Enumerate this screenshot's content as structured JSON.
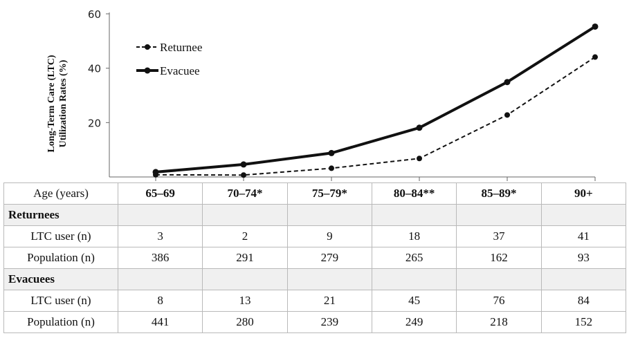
{
  "chart_data": {
    "type": "line",
    "ylabel_lines": [
      "Long-Term Care (LTC)",
      "Utilization Rates (%)"
    ],
    "yticks": [
      "20",
      "40",
      "60"
    ],
    "ylim": [
      0,
      60
    ],
    "categories": [
      "65–69",
      "70–74*",
      "75–79*",
      "80–84**",
      "85–89*",
      "90+"
    ],
    "series": [
      {
        "name": "Returnee",
        "style": "dashed",
        "values": [
          0.8,
          0.7,
          3.2,
          6.8,
          22.8,
          44.1
        ]
      },
      {
        "name": "Evacuee",
        "style": "solid",
        "values": [
          1.8,
          4.6,
          8.8,
          18.1,
          34.9,
          55.3
        ]
      }
    ],
    "legend_position": "top-left",
    "grid": false
  },
  "table": {
    "header_label": "Age (years)",
    "groups": [
      {
        "name": "Returnees",
        "rows": [
          {
            "label": "LTC user (n)",
            "values": [
              "3",
              "2",
              "9",
              "18",
              "37",
              "41"
            ]
          },
          {
            "label": "Population (n)",
            "values": [
              "386",
              "291",
              "279",
              "265",
              "162",
              "93"
            ]
          }
        ]
      },
      {
        "name": "Evacuees",
        "rows": [
          {
            "label": "LTC user (n)",
            "values": [
              "8",
              "13",
              "21",
              "45",
              "76",
              "84"
            ]
          },
          {
            "label": "Population (n)",
            "values": [
              "441",
              "280",
              "239",
              "249",
              "218",
              "152"
            ]
          }
        ]
      }
    ]
  },
  "colors": {
    "line": "#111111",
    "border": "#b9b9b9",
    "shade": "#f0f0f0"
  }
}
